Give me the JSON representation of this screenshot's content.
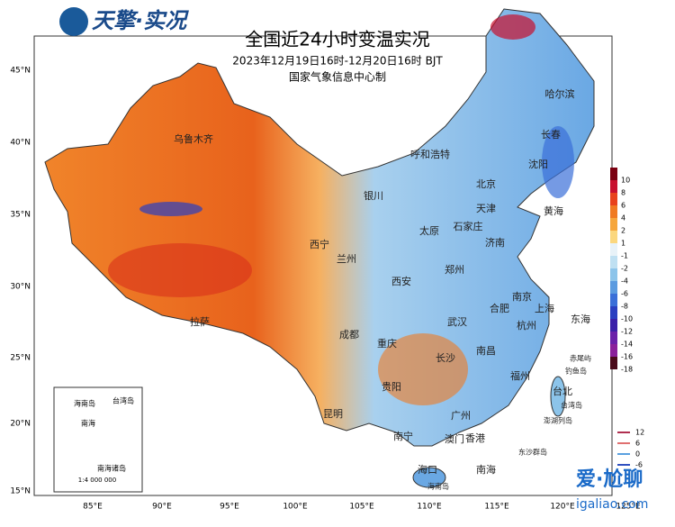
{
  "header": {
    "logo": "天擎·实况",
    "title": "全国近24小时变温实况",
    "subtitle": "2023年12月19日16时-12月20日16时 BJT",
    "org": "国家气象信息中心制"
  },
  "lat_labels": [
    "45°N",
    "40°N",
    "35°N",
    "30°N",
    "25°N",
    "20°N",
    "15°N"
  ],
  "lon_labels": [
    "85°E",
    "90°E",
    "95°E",
    "100°E",
    "105°E",
    "110°E",
    "115°E",
    "120°E",
    "125°E"
  ],
  "places": [
    "哈尔滨",
    "长春",
    "沈阳",
    "乌鲁木齐",
    "呼和浩特",
    "北京",
    "天津",
    "银川",
    "太原",
    "石家庄",
    "济南",
    "西宁",
    "兰州",
    "郑州",
    "西安",
    "南京",
    "合肥",
    "上海",
    "武汉",
    "成都",
    "杭州",
    "重庆",
    "长沙",
    "南昌",
    "拉萨",
    "福州",
    "贵阳",
    "台北",
    "昆明",
    "广州",
    "南宁",
    "香港",
    "澳门",
    "海口",
    "东海",
    "南海",
    "黄海",
    "钓鱼岛",
    "赤尾屿",
    "澎湖列岛",
    "东沙群岛",
    "海南岛",
    "台湾岛"
  ],
  "inset": {
    "labels": [
      "海南岛",
      "台湾岛",
      "南海",
      "南海诸岛"
    ],
    "scale": "1:4 000 000"
  },
  "legend": {
    "values": [
      10,
      8,
      6,
      4,
      2,
      1,
      -1,
      -2,
      -4,
      -6,
      -8,
      -10,
      -12,
      -14,
      -16,
      -18
    ],
    "colors": [
      "#7a0010",
      "#c8102e",
      "#e8421c",
      "#f07a22",
      "#f6a63c",
      "#fbd77e",
      "#e8f2f8",
      "#bfe0f2",
      "#8cc4ea",
      "#5b9be0",
      "#3a6fd8",
      "#2a3fc0",
      "#3a1fa8",
      "#6a1fa8",
      "#8a1f9a",
      "#4a0a1a"
    ]
  },
  "contour_legend": {
    "values": [
      12,
      6,
      0,
      -6
    ],
    "colors": [
      "#b03050",
      "#e07070",
      "#5aa0e0",
      "#3050c0"
    ]
  },
  "watermark": {
    "brand": "爱·尬聊",
    "url": "igaliao.com"
  }
}
